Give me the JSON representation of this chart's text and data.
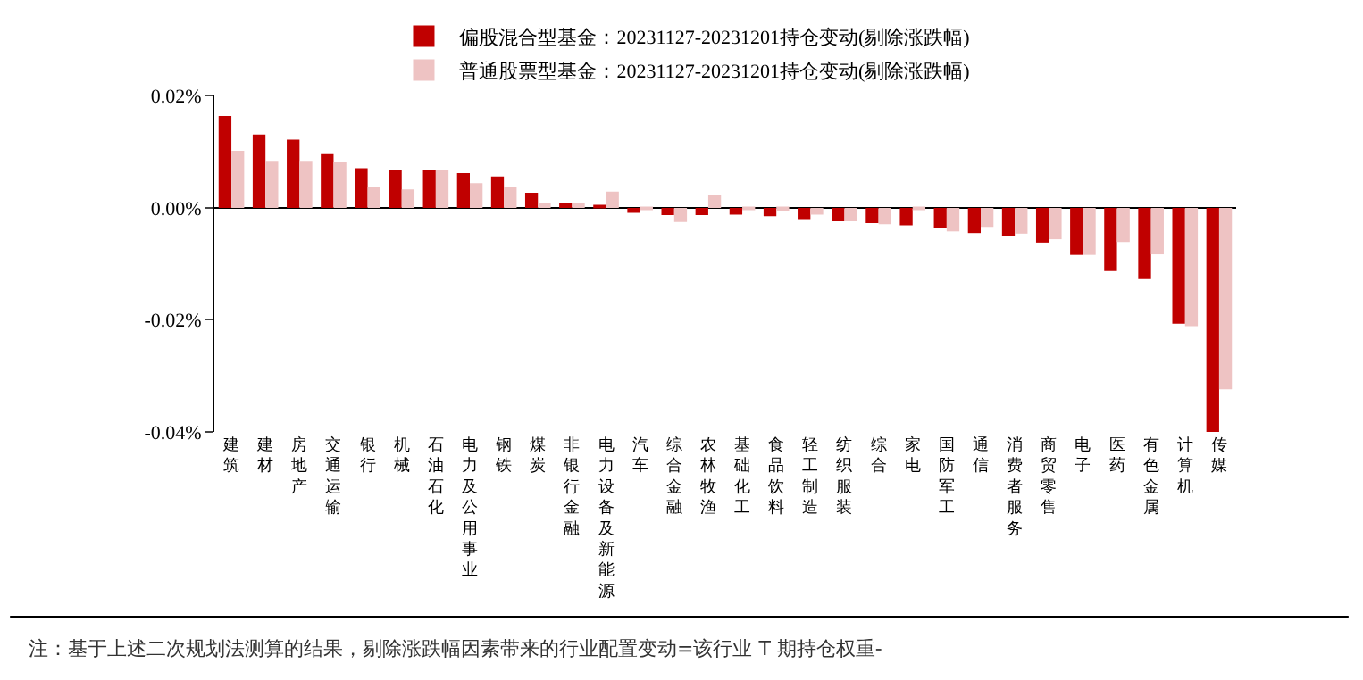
{
  "chart_data": {
    "type": "bar",
    "categories": [
      "建筑",
      "建材",
      "房地产",
      "交通运输",
      "银行",
      "机械",
      "石油石化",
      "电力及公用事业",
      "钢铁",
      "煤炭",
      "非银行金融",
      "电力设备及新能源",
      "汽车",
      "综合金融",
      "农林牧渔",
      "基础化工",
      "食品饮料",
      "轻工制造",
      "纺织服装",
      "综合",
      "家电",
      "国防军工",
      "通信",
      "消费者服务",
      "商贸零售",
      "电子",
      "医药",
      "有色金属",
      "计算机",
      "传媒"
    ],
    "series": [
      {
        "name": "偏股混合型基金：20231127-20231201持仓变动(剔除涨跌幅)",
        "color": "#c00000",
        "values": [
          0.0164,
          0.0131,
          0.0122,
          0.0096,
          0.0071,
          0.0068,
          0.0068,
          0.0062,
          0.0056,
          0.0027,
          0.0008,
          0.0005,
          -0.0009,
          -0.0013,
          -0.0013,
          -0.0012,
          -0.0015,
          -0.002,
          -0.0024,
          -0.0027,
          -0.0031,
          -0.0036,
          -0.0045,
          -0.0051,
          -0.0062,
          -0.0084,
          -0.0113,
          -0.0127,
          -0.0207,
          -0.04
        ]
      },
      {
        "name": "普通股票型基金：20231127-20231201持仓变动(剔除涨跌幅)",
        "color": "#eec3c3",
        "values": [
          0.0102,
          0.0084,
          0.0084,
          0.0081,
          0.0038,
          0.0033,
          0.0067,
          0.0044,
          0.0037,
          0.0009,
          0.0008,
          0.0029,
          -0.0001,
          -0.0025,
          0.0023,
          -0.0004,
          -0.0005,
          -0.0012,
          -0.0024,
          -0.0029,
          -0.0004,
          -0.0042,
          -0.0034,
          -0.0046,
          -0.0056,
          -0.0084,
          -0.0061,
          -0.0083,
          -0.0211,
          -0.0324
        ]
      }
    ],
    "ylim": [
      -0.04,
      0.02
    ],
    "yticks": [
      {
        "value": -0.04,
        "label": "-0.04%"
      },
      {
        "value": -0.02,
        "label": "-0.02%"
      },
      {
        "value": 0,
        "label": "0.00%"
      },
      {
        "value": 0.02,
        "label": "0.02%"
      }
    ],
    "legend": "top",
    "annotations": [
      "注：基于上述二次规划法测算的结果，剔除涨跌幅因素带来的行业配置变动=该行业 T 期持仓权重-"
    ]
  }
}
